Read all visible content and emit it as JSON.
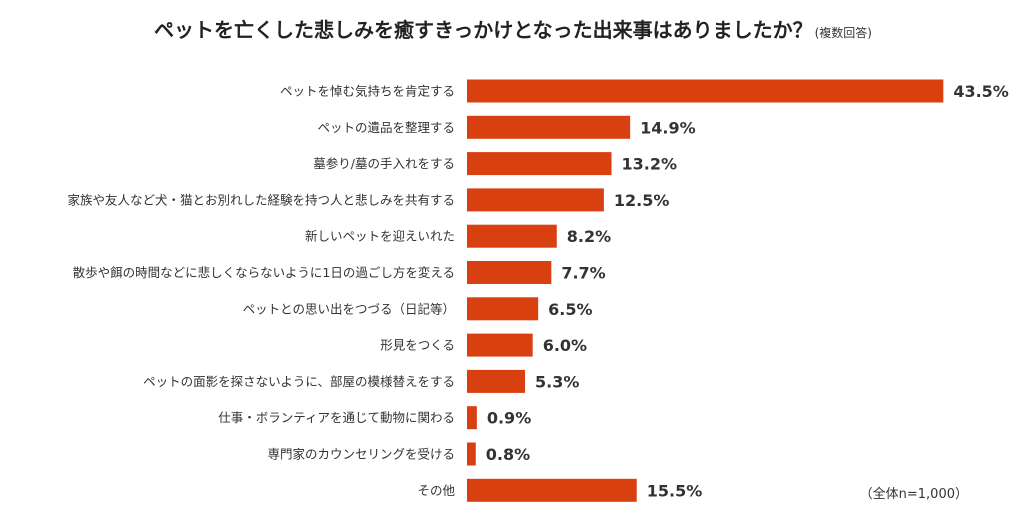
{
  "header": {
    "title": "ペットを亡くした悲しみを癒すきっかけとなった出来事はありましたか？",
    "subtitle": "(複数回答)"
  },
  "note": "（全体n=1,000）",
  "chart_data": {
    "type": "bar",
    "orientation": "horizontal",
    "categories": [
      "ペットを悼む気持ちを肯定する",
      "ペットの遺品を整理する",
      "墓参り/墓の手入れをする",
      "家族や友人など犬・猫とお別れした経験を持つ人と悲しみを共有する",
      "新しいペットを迎えいれた",
      "散歩や餌の時間などに悲しくならないように1日の過ごし方を変える",
      "ペットとの思い出をつづる（日記等）",
      "形見をつくる",
      "ペットの面影を探さないように、部屋の模様替えをする",
      "仕事・ボランティアを通じて動物に関わる",
      "専門家のカウンセリングを受ける",
      "その他"
    ],
    "values": [
      43.5,
      14.9,
      13.2,
      12.5,
      8.2,
      7.7,
      6.5,
      6.0,
      5.3,
      0.9,
      0.8,
      15.5
    ],
    "value_labels": [
      "43.5%",
      "14.9%",
      "13.2%",
      "12.5%",
      "8.2%",
      "7.7%",
      "6.5%",
      "6.0%",
      "5.3%",
      "0.9%",
      "0.8%",
      "15.5%"
    ],
    "bar_color": "#d9400f",
    "grid": false,
    "legend": "none"
  }
}
